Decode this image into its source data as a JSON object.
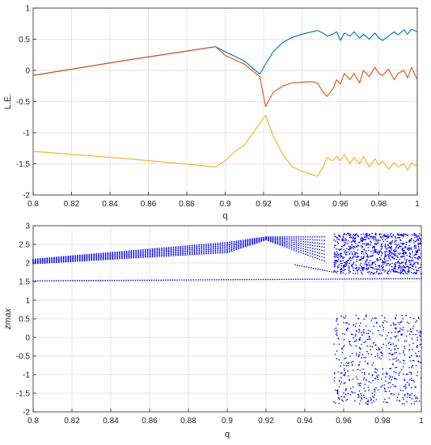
{
  "chart_data": [
    {
      "type": "line",
      "xlabel": "q",
      "ylabel": "L.E.",
      "xlim": [
        0.8,
        1.0
      ],
      "ylim": [
        -2,
        1
      ],
      "xticks": [
        0.8,
        0.82,
        0.84,
        0.86,
        0.88,
        0.9,
        0.92,
        0.94,
        0.96,
        0.98,
        1
      ],
      "xtick_labels": [
        "0.8",
        "0.82",
        "0.84",
        "0.86",
        "0.88",
        "0.9",
        "0.92",
        "0.94",
        "0.96",
        "0.98",
        "1"
      ],
      "yticks": [
        -2,
        -1.5,
        -1,
        -0.5,
        0,
        0.5,
        1
      ],
      "ytick_labels": [
        "-2",
        "-1.5",
        "-1",
        "-0.5",
        "0",
        "0.5",
        "1"
      ],
      "grid": true,
      "series": [
        {
          "color": "#0072BD",
          "x": [
            0.8,
            0.85,
            0.895,
            0.9,
            0.91,
            0.918,
            0.921,
            0.925,
            0.93,
            0.935,
            0.94,
            0.945,
            0.948,
            0.951,
            0.953,
            0.956,
            0.958,
            0.96,
            0.962,
            0.965,
            0.967,
            0.97,
            0.972,
            0.975,
            0.978,
            0.98,
            0.982,
            0.985,
            0.988,
            0.99,
            0.993,
            0.995,
            0.997,
            1.0
          ],
          "y": [
            -0.08,
            0.17,
            0.38,
            0.3,
            0.15,
            -0.06,
            0.1,
            0.3,
            0.45,
            0.53,
            0.58,
            0.62,
            0.64,
            0.6,
            0.55,
            0.58,
            0.62,
            0.48,
            0.6,
            0.55,
            0.62,
            0.52,
            0.58,
            0.5,
            0.6,
            0.52,
            0.48,
            0.55,
            0.62,
            0.57,
            0.65,
            0.58,
            0.66,
            0.62
          ]
        },
        {
          "color": "#D95319",
          "x": [
            0.8,
            0.85,
            0.895,
            0.9,
            0.91,
            0.918,
            0.921,
            0.925,
            0.93,
            0.935,
            0.94,
            0.945,
            0.948,
            0.951,
            0.953,
            0.956,
            0.958,
            0.96,
            0.962,
            0.965,
            0.967,
            0.97,
            0.972,
            0.975,
            0.978,
            0.98,
            0.982,
            0.985,
            0.988,
            0.99,
            0.993,
            0.995,
            0.997,
            1.0
          ],
          "y": [
            -0.08,
            0.17,
            0.38,
            0.24,
            0.1,
            -0.1,
            -0.58,
            -0.35,
            -0.25,
            -0.2,
            -0.19,
            -0.18,
            -0.2,
            -0.35,
            -0.42,
            -0.3,
            -0.15,
            -0.22,
            -0.05,
            -0.15,
            -0.05,
            -0.2,
            0.0,
            -0.1,
            0.05,
            -0.05,
            -0.08,
            0.02,
            -0.15,
            -0.05,
            0.0,
            -0.12,
            0.05,
            -0.15
          ]
        },
        {
          "color": "#EDB120",
          "x": [
            0.8,
            0.85,
            0.895,
            0.9,
            0.905,
            0.91,
            0.918,
            0.921,
            0.925,
            0.93,
            0.935,
            0.94,
            0.945,
            0.948,
            0.951,
            0.953,
            0.956,
            0.958,
            0.96,
            0.962,
            0.965,
            0.967,
            0.97,
            0.972,
            0.975,
            0.978,
            0.98,
            0.982,
            0.985,
            0.988,
            0.99,
            0.993,
            0.995,
            0.997,
            1.0
          ],
          "y": [
            -1.3,
            -1.42,
            -1.55,
            -1.45,
            -1.3,
            -1.2,
            -0.85,
            -0.72,
            -1.05,
            -1.35,
            -1.55,
            -1.62,
            -1.67,
            -1.7,
            -1.55,
            -1.4,
            -1.45,
            -1.38,
            -1.45,
            -1.35,
            -1.5,
            -1.4,
            -1.5,
            -1.38,
            -1.55,
            -1.42,
            -1.52,
            -1.45,
            -1.58,
            -1.48,
            -1.55,
            -1.5,
            -1.6,
            -1.48,
            -1.55
          ]
        }
      ]
    },
    {
      "type": "scatter",
      "xlabel": "q",
      "ylabel": "zmax",
      "xlim": [
        0.8,
        1.0
      ],
      "ylim": [
        -2,
        3
      ],
      "xticks": [
        0.8,
        0.82,
        0.84,
        0.86,
        0.88,
        0.9,
        0.92,
        0.94,
        0.96,
        0.98,
        1
      ],
      "xtick_labels": [
        "0.8",
        "0.82",
        "0.84",
        "0.86",
        "0.88",
        "0.9",
        "0.92",
        "0.94",
        "0.96",
        "0.98",
        "1"
      ],
      "yticks": [
        -2,
        -1.5,
        -1,
        -0.5,
        0,
        0.5,
        1,
        1.5,
        2,
        2.5,
        3
      ],
      "ytick_labels": [
        "-2",
        "-1.5",
        "-1",
        "-0.5",
        "0",
        "0.5",
        "1",
        "1.5",
        "2",
        "2.5",
        "3"
      ],
      "grid": true,
      "color": "#0000FF",
      "marker": "point",
      "bands": [
        {
          "x_start": 0.8,
          "x_end": 1.0,
          "y_lo_start": 1.52,
          "y_lo_end": 1.58,
          "y_hi_start": 1.52,
          "y_hi_end": 1.58
        },
        {
          "x_start": 0.8,
          "x_end": 0.9,
          "y_lo_start": 1.98,
          "y_lo_end": 2.28,
          "y_hi_start": 2.1,
          "y_hi_end": 2.55
        },
        {
          "x_start": 0.9,
          "x_end": 0.92,
          "y_lo_start": 2.28,
          "y_lo_end": 2.62,
          "y_hi_start": 2.55,
          "y_hi_end": 2.7
        },
        {
          "x_start": 0.92,
          "x_end": 0.95,
          "y_lo_start": 2.62,
          "y_lo_end": 2.05,
          "y_hi_start": 2.7,
          "y_hi_end": 2.7
        },
        {
          "x_start": 0.935,
          "x_end": 0.955,
          "y_lo_start": 1.95,
          "y_lo_end": 1.75,
          "y_hi_start": 1.95,
          "y_hi_end": 1.75
        }
      ],
      "chaotic_region": {
        "x_start": 0.955,
        "x_end": 1.0,
        "y_clusters": [
          [
            1.7,
            2.8
          ],
          [
            -1.8,
            0.6
          ]
        ]
      }
    }
  ]
}
